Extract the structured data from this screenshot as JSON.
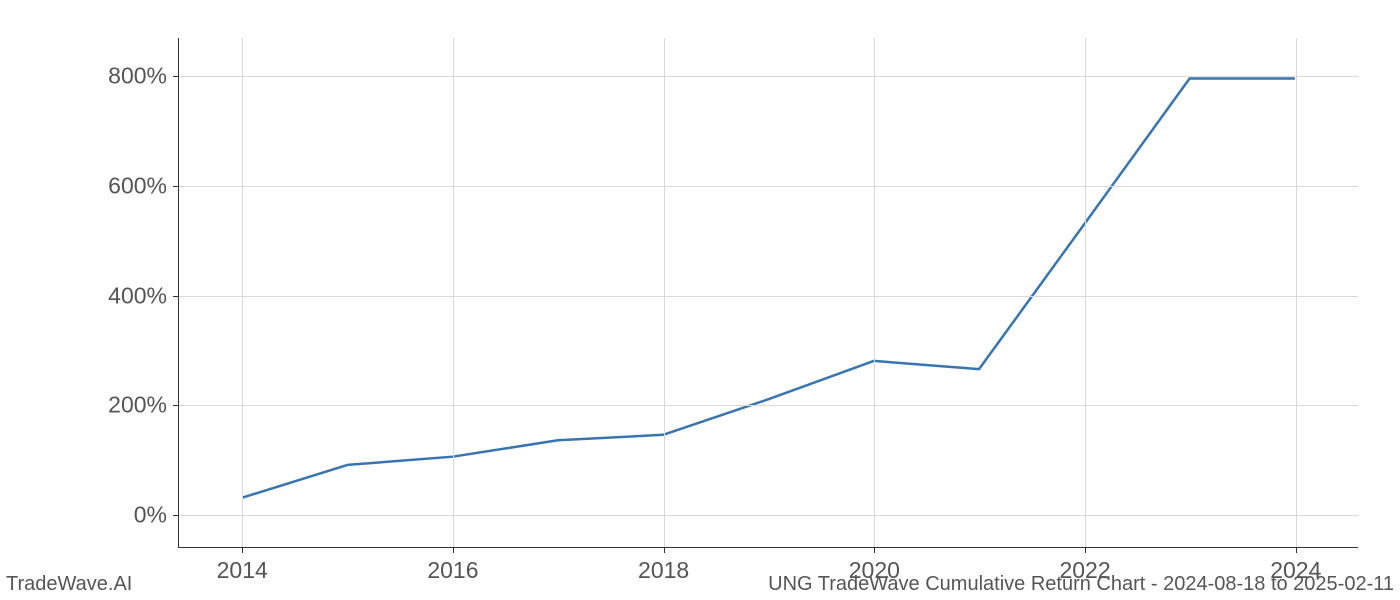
{
  "chart": {
    "type": "line",
    "background_color": "#ffffff",
    "grid_color": "#d9d9d9",
    "axis_color": "#333333",
    "tick_label_color": "#555555",
    "tick_label_fontsize": 23,
    "line_color": "#3775b0",
    "line_width": 2.5,
    "x": {
      "min": 2013.4,
      "max": 2024.6,
      "ticks": [
        2014,
        2016,
        2018,
        2020,
        2022,
        2024
      ],
      "tick_labels": [
        "2014",
        "2016",
        "2018",
        "2020",
        "2022",
        "2024"
      ]
    },
    "y": {
      "min": -60,
      "max": 870,
      "ticks": [
        0,
        200,
        400,
        600,
        800
      ],
      "tick_labels": [
        "0%",
        "200%",
        "400%",
        "600%",
        "800%"
      ]
    },
    "series": [
      {
        "x": 2014,
        "y": 30
      },
      {
        "x": 2015,
        "y": 90
      },
      {
        "x": 2016,
        "y": 105
      },
      {
        "x": 2017,
        "y": 135
      },
      {
        "x": 2018,
        "y": 145
      },
      {
        "x": 2019,
        "y": 210
      },
      {
        "x": 2020,
        "y": 280
      },
      {
        "x": 2021,
        "y": 265
      },
      {
        "x": 2022,
        "y": 530
      },
      {
        "x": 2023,
        "y": 796
      },
      {
        "x": 2024,
        "y": 796
      }
    ]
  },
  "footer": {
    "left": "TradeWave.AI",
    "right": "UNG TradeWave Cumulative Return Chart - 2024-08-18 to 2025-02-11",
    "fontsize": 20,
    "color": "#555555"
  }
}
